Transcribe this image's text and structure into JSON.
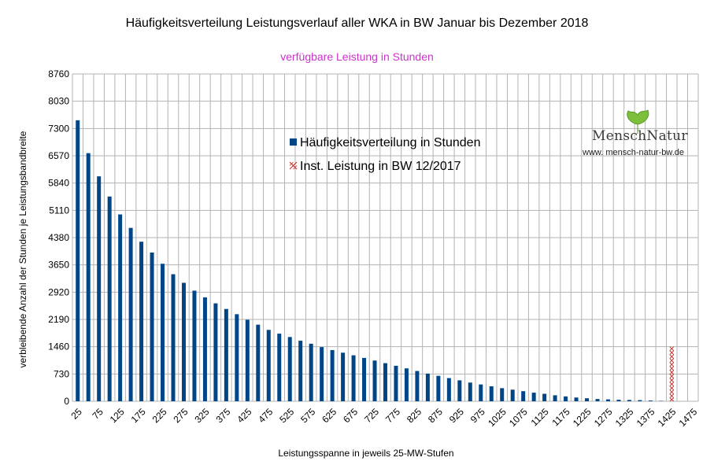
{
  "chart_data": {
    "type": "bar",
    "title": "Häufigkeitsverteilung Leistungsverlauf aller WKA in BW Januar bis Dezember 2018",
    "subtitle": "verfügbare Leistung in Stunden",
    "xlabel": "Leistungsspanne in jeweils 25-MW-Stufen",
    "ylabel": "verbleibende Anzahl der Stunden je Leistungsbandbreite",
    "ylim": [
      0,
      8760
    ],
    "yticks": [
      0,
      730,
      1460,
      2190,
      2920,
      3650,
      4380,
      5110,
      5840,
      6570,
      7300,
      8030,
      8760
    ],
    "xticks": [
      "25",
      "75",
      "125",
      "175",
      "225",
      "275",
      "325",
      "375",
      "425",
      "475",
      "525",
      "575",
      "625",
      "675",
      "725",
      "775",
      "825",
      "875",
      "925",
      "975",
      "1025",
      "1075",
      "1125",
      "1175",
      "1225",
      "1275",
      "1325",
      "1375",
      "1425",
      "1475"
    ],
    "grid": true,
    "legend_position": "top-center",
    "series": [
      {
        "name": "Häufigkeitsverteilung in Stunden",
        "color": "#004586",
        "x": [
          25,
          50,
          75,
          100,
          125,
          150,
          175,
          200,
          225,
          250,
          275,
          300,
          325,
          350,
          375,
          400,
          425,
          450,
          475,
          500,
          525,
          550,
          575,
          600,
          625,
          650,
          675,
          700,
          725,
          750,
          775,
          800,
          825,
          850,
          875,
          900,
          925,
          950,
          975,
          1000,
          1025,
          1050,
          1075,
          1100,
          1125,
          1150,
          1175,
          1200,
          1225,
          1250,
          1275,
          1300,
          1325,
          1350,
          1375,
          1400
        ],
        "values": [
          7520,
          6640,
          6020,
          5480,
          5000,
          4640,
          4270,
          3980,
          3680,
          3400,
          3170,
          2960,
          2780,
          2620,
          2470,
          2330,
          2180,
          2050,
          1910,
          1810,
          1720,
          1620,
          1540,
          1450,
          1370,
          1300,
          1230,
          1160,
          1090,
          1020,
          950,
          880,
          810,
          740,
          680,
          620,
          560,
          500,
          450,
          400,
          350,
          310,
          270,
          230,
          200,
          160,
          130,
          100,
          80,
          60,
          50,
          40,
          35,
          30,
          20,
          10
        ]
      },
      {
        "name": "Inst. Leistung in BW 12/2017",
        "color": "#c9211e",
        "x": [
          1425
        ],
        "values": [
          1460
        ]
      }
    ]
  },
  "logo": {
    "name": "MenschNatur",
    "url": "www. mensch-natur-bw.de"
  }
}
